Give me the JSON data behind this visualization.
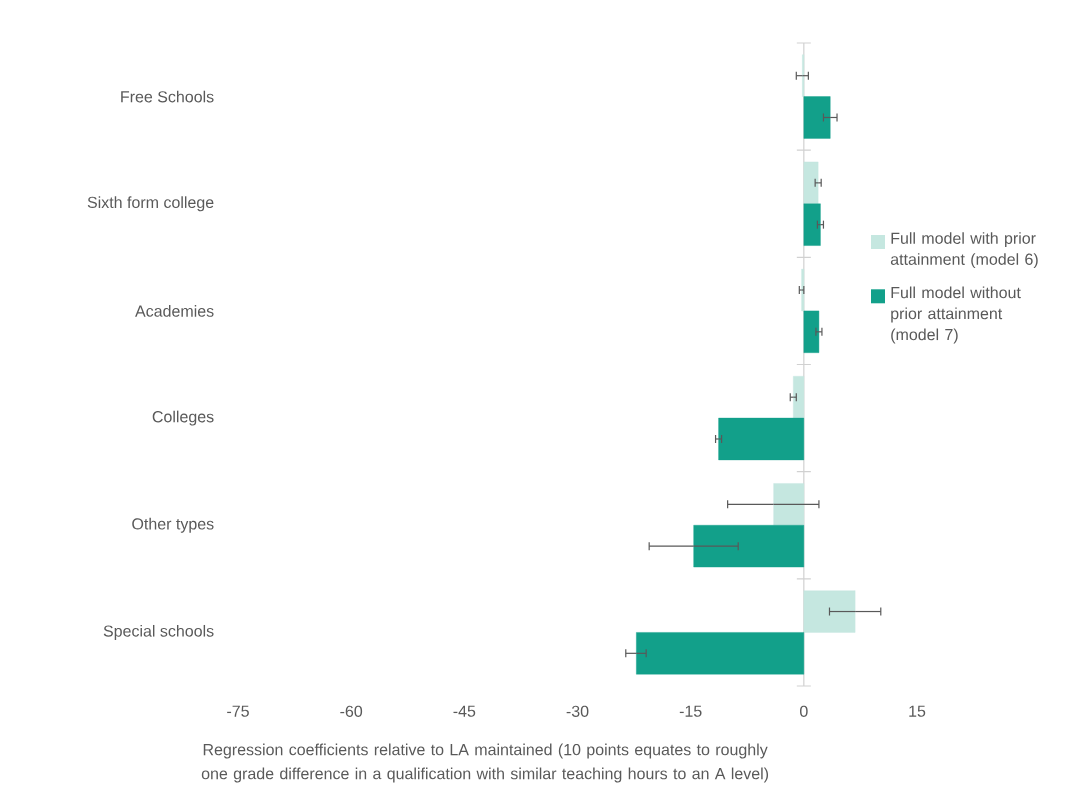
{
  "chart_data": {
    "type": "bar",
    "orientation": "horizontal",
    "xlabel": "Regression coefficients relative to LA maintained (10 points equates to roughly one grade difference in a qualification with similar teaching hours to an A level)",
    "categories": [
      "Free Schools",
      "Sixth form college",
      "Academies",
      "Colleges",
      "Other types",
      "Special schools"
    ],
    "series": [
      {
        "name": "Full model with prior attainment (model 6)",
        "color": "#c5e7e0",
        "values": [
          -0.2,
          1.9,
          -0.3,
          -1.4,
          -4.0,
          6.8
        ],
        "errors": [
          0.8,
          0.4,
          0.3,
          0.4,
          [
            -10.1,
            2.0
          ],
          [
            3.4,
            10.2
          ]
        ]
      },
      {
        "name": "Full model without prior attainment (model 7)",
        "color": "#12a08a",
        "values": [
          3.5,
          2.2,
          2.0,
          -11.3,
          -14.6,
          -22.2
        ],
        "errors": [
          0.9,
          0.4,
          0.4,
          0.4,
          [
            -20.5,
            -8.7
          ],
          [
            -23.6,
            -20.9
          ]
        ]
      }
    ],
    "xlim": [
      -75,
      15
    ],
    "xticks": [
      -75,
      -60,
      -45,
      -30,
      -15,
      0,
      15
    ],
    "legend": "right"
  }
}
